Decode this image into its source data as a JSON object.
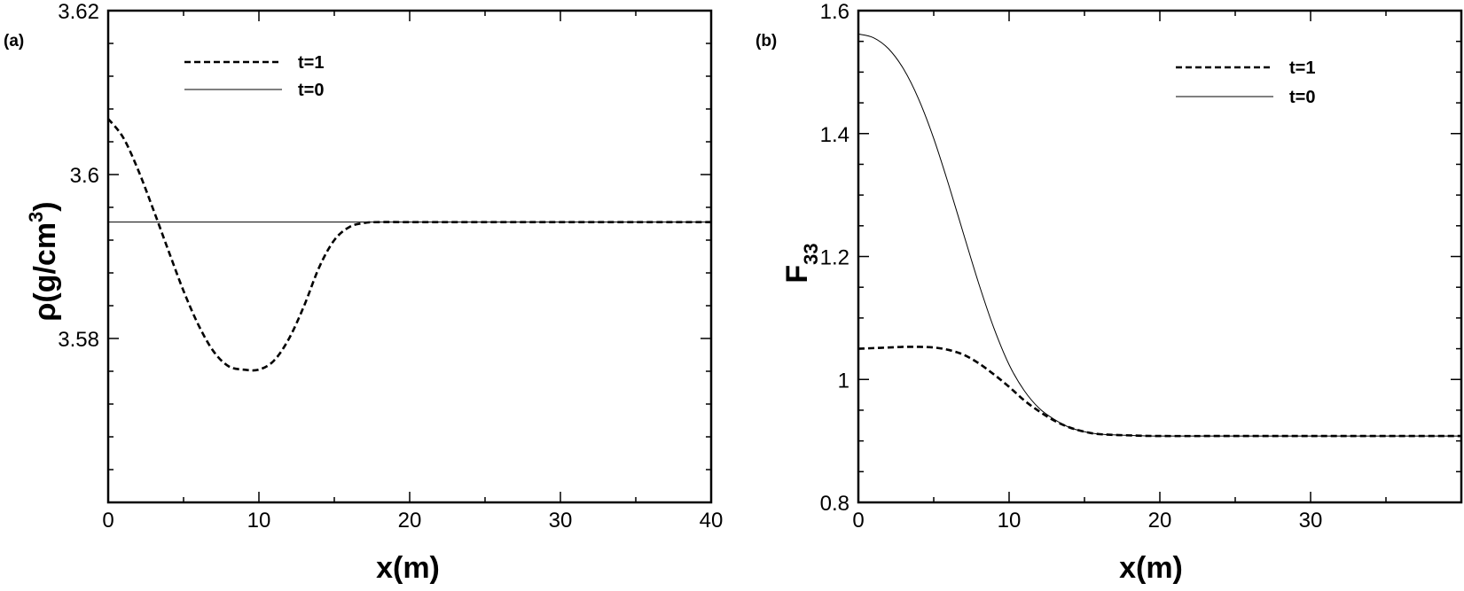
{
  "chart_data": [
    {
      "type": "line",
      "panel_label": "(a)",
      "title": "",
      "xlabel": "x(m)",
      "ylabel_main": "ρ(g/cm",
      "ylabel_sup": "3",
      "ylabel_close": ")",
      "xlim": [
        0,
        40
      ],
      "ylim": [
        3.56,
        3.62
      ],
      "x_ticks": [
        0,
        10,
        20,
        30,
        40
      ],
      "x_tick_labels": [
        "0",
        "10",
        "20",
        "30",
        "40"
      ],
      "y_ticks": [
        3.58,
        3.6,
        3.62
      ],
      "y_tick_labels": [
        "3.58",
        "3.6",
        "3.62"
      ],
      "grid": false,
      "legend_position": "top-center",
      "series": [
        {
          "name": "t=1",
          "style": "dashed",
          "x": [
            0,
            1,
            2,
            3,
            4,
            5,
            6,
            7,
            8,
            9,
            10,
            11,
            12,
            13,
            14,
            15,
            16,
            17,
            18,
            20,
            25,
            30,
            35,
            40
          ],
          "y": [
            3.6068,
            3.6045,
            3.6005,
            3.5957,
            3.5907,
            3.5858,
            3.5816,
            3.5784,
            3.5766,
            3.5762,
            3.5762,
            3.5773,
            3.58,
            3.584,
            3.5887,
            3.592,
            3.5936,
            3.5941,
            3.5942,
            3.5942,
            3.5942,
            3.5942,
            3.5942,
            3.5942
          ]
        },
        {
          "name": "t=0",
          "style": "solid",
          "x": [
            0,
            40
          ],
          "y": [
            3.5942,
            3.5942
          ]
        }
      ]
    },
    {
      "type": "line",
      "panel_label": "(b)",
      "title": "",
      "xlabel": "x(m)",
      "ylabel_main": "F",
      "ylabel_sub": "33",
      "xlim": [
        0,
        40
      ],
      "ylim": [
        0.8,
        1.6
      ],
      "x_ticks": [
        0,
        10,
        20,
        30
      ],
      "x_tick_labels": [
        "0",
        "10",
        "20",
        "30"
      ],
      "y_ticks": [
        0.8,
        1,
        1.2,
        1.4,
        1.6
      ],
      "y_tick_labels": [
        "0.8",
        "1",
        "1.2",
        "1.4",
        "1.6"
      ],
      "grid": false,
      "legend_position": "top-right",
      "series": [
        {
          "name": "t=1",
          "style": "dashed",
          "x": [
            0,
            1,
            2,
            3,
            4,
            5,
            6,
            7,
            8,
            9,
            10,
            11,
            12,
            13,
            14,
            15,
            16,
            18,
            20,
            25,
            30,
            35,
            40
          ],
          "y": [
            1.05,
            1.051,
            1.052,
            1.053,
            1.053,
            1.052,
            1.048,
            1.04,
            1.026,
            1.008,
            0.988,
            0.966,
            0.948,
            0.933,
            0.922,
            0.915,
            0.911,
            0.909,
            0.908,
            0.908,
            0.908,
            0.908,
            0.908
          ]
        },
        {
          "name": "t=0",
          "style": "solid",
          "x": [
            0,
            1,
            2,
            3,
            4,
            5,
            6,
            7,
            8,
            9,
            10,
            11,
            12,
            13,
            14,
            15,
            16,
            18,
            20,
            25,
            30,
            35,
            40
          ],
          "y": [
            1.562,
            1.556,
            1.538,
            1.505,
            1.456,
            1.392,
            1.316,
            1.235,
            1.155,
            1.083,
            1.024,
            0.982,
            0.953,
            0.935,
            0.922,
            0.915,
            0.911,
            0.909,
            0.908,
            0.908,
            0.908,
            0.908,
            0.908
          ]
        }
      ]
    }
  ]
}
